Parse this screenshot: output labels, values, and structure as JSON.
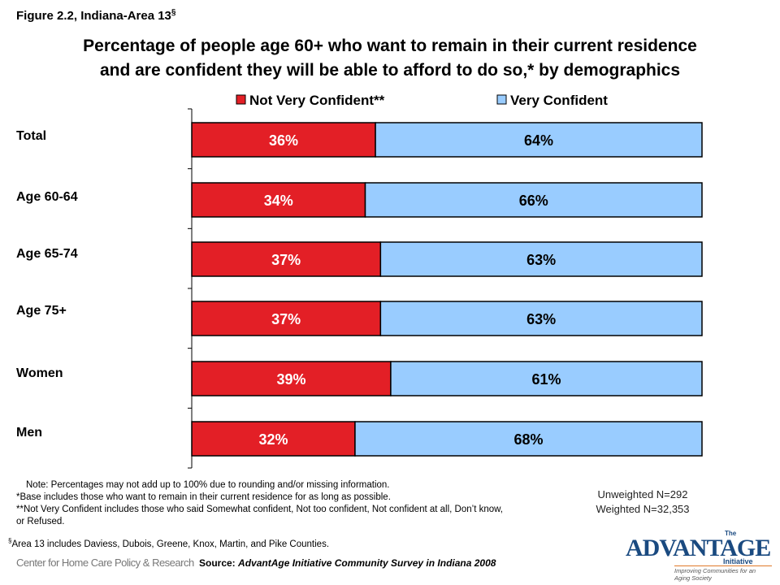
{
  "figure_label": "Figure 2.2, Indiana-Area 13",
  "figure_label_sup": "§",
  "title_line1": "Percentage of people age 60+ who want to remain in their current residence",
  "title_line2": "and are confident they will be able to afford to do so,* by demographics",
  "chart_data": {
    "type": "bar",
    "orientation": "horizontal",
    "stacked": true,
    "categories": [
      "Total",
      "Age 60-64",
      "Age 65-74",
      "Age 75+",
      "Women",
      "Men"
    ],
    "series": [
      {
        "name": "Not Very Confident**",
        "color": "#e31f26",
        "values": [
          36,
          34,
          37,
          37,
          39,
          32
        ]
      },
      {
        "name": "Very Confident",
        "color": "#99ccff",
        "values": [
          64,
          66,
          63,
          63,
          61,
          68
        ]
      }
    ],
    "data_labels": [
      [
        "36%",
        "34%",
        "37%",
        "37%",
        "39%",
        "32%"
      ],
      [
        "64%",
        "66%",
        "63%",
        "63%",
        "61%",
        "68%"
      ]
    ],
    "xlim": [
      0,
      100
    ],
    "legend_position": "top",
    "grid": false
  },
  "notes": [
    "Note: Percentages may not add up to 100% due to rounding and/or missing information.",
    "*Base includes those who want to remain in their current residence for as long as possible.",
    "**Not Very Confident includes those who said Somewhat confident, Not too confident, Not confident at all, Don’t know,",
    "or Refused."
  ],
  "unweighted_n": "Unweighted N=292",
  "weighted_n": "Weighted N=32,353",
  "area_note_sup": "§",
  "area_note": "Area 13 includes Daviess, Dubois, Greene, Knox, Martin, and Pike Counties.",
  "source_label": "Source:",
  "source_text": "AdvantAge Initiative Community Survey in Indiana 2008",
  "chp_logo_text": "Center for Home Care Policy & Research",
  "advantage_logo": {
    "the": "The",
    "name": "ADVANTAGE",
    "initiative": "Initiative",
    "tagline": "Improving Communities for an Aging Society"
  }
}
